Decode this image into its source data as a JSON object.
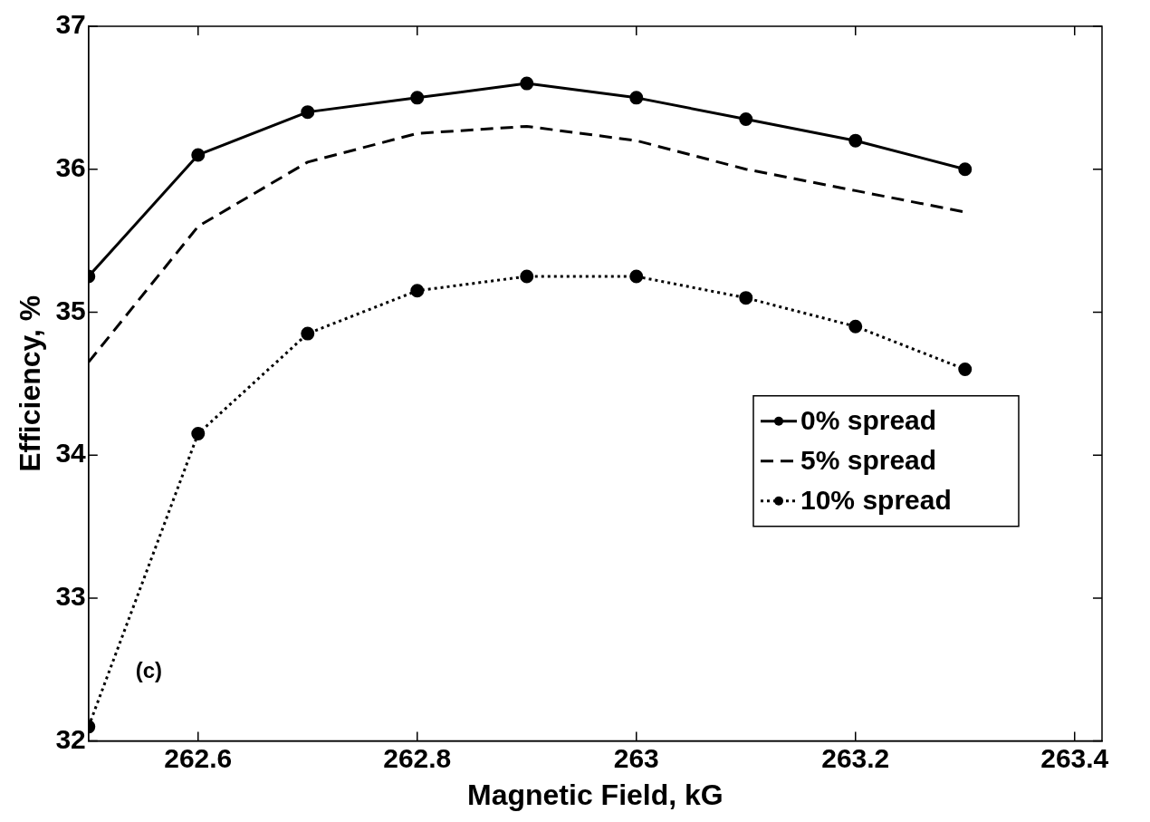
{
  "chart_data": {
    "type": "line",
    "xlabel": "Magnetic Field, kG",
    "ylabel": "Efficiency, %",
    "x": [
      262.5,
      262.6,
      262.7,
      262.8,
      262.9,
      263.0,
      263.1,
      263.2,
      263.3
    ],
    "series": [
      {
        "name": "0% spread",
        "color": "#000000",
        "marker": "circle",
        "line_style": "solid",
        "values": [
          35.25,
          36.1,
          36.4,
          36.5,
          36.6,
          36.5,
          36.35,
          36.2,
          36.0
        ]
      },
      {
        "name": "5% spread",
        "color": "#000000",
        "marker": "none",
        "line_style": "dashed",
        "values": [
          34.65,
          35.6,
          36.05,
          36.25,
          36.3,
          36.2,
          36.0,
          35.85,
          35.7
        ]
      },
      {
        "name": "10% spread",
        "color": "#000000",
        "marker": "circle",
        "line_style": "dotted",
        "values": [
          32.1,
          34.15,
          34.85,
          35.15,
          35.25,
          35.25,
          35.1,
          34.9,
          34.6
        ]
      }
    ],
    "xlim": [
      262.5,
      263.425
    ],
    "xticks": [
      262.6,
      262.8,
      263,
      263.2,
      263.4
    ],
    "ylim": [
      32,
      37
    ],
    "yticks": [
      32,
      33,
      34,
      35,
      36,
      37
    ],
    "grid": false,
    "legend": "right",
    "annotations": [
      "(c)"
    ]
  }
}
